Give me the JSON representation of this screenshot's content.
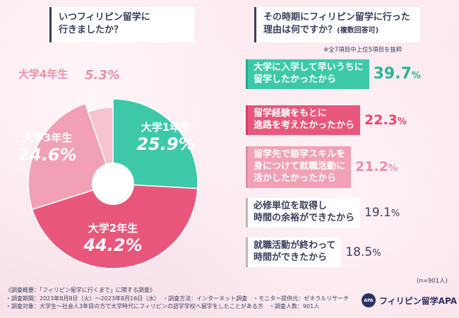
{
  "left_question": {
    "line1": "いつフィリピン留学に",
    "line2": "行きましたか？"
  },
  "right_question": {
    "line1": "その時期にフィリピン留学に行った",
    "line2": "理由は何ですか？",
    "line2_sub": "(複数回答可)"
  },
  "note": "※全7項目中上位5項目を抜粋",
  "chart_data": [
    {
      "type": "pie",
      "title": "いつフィリピン留学に行きましたか？",
      "donut": true,
      "slices": [
        {
          "label": "大学1年生",
          "value": 25.9,
          "display": "25.9%",
          "color": "#3dc9a8"
        },
        {
          "label": "大学2年生",
          "value": 44.2,
          "display": "44.2%",
          "color": "#e8577b"
        },
        {
          "label": "大学3年生",
          "value": 24.6,
          "display": "24.6%",
          "color": "#f2a0b5"
        },
        {
          "label": "大学4年生",
          "value": 5.3,
          "display": "5.3%",
          "color": "#f7c3d0"
        }
      ]
    },
    {
      "type": "bar",
      "title": "その時期にフィリピン留学に行った理由は何ですか？(複数回答可)",
      "categories": [
        "大学に入学して早いうちに留学したかったから",
        "留学経験をもとに進路を考えたかったから",
        "留学先で語学スキルを身につけて就職活動に活かしたかったから",
        "必修単位を取得し時間の余裕ができたから",
        "就職活動が終わって時間ができたから"
      ],
      "values": [
        39.7,
        22.3,
        21.2,
        19.1,
        18.5
      ],
      "unit": "%"
    }
  ],
  "reasons": [
    {
      "lines": [
        "大学に入学して早いうちに",
        "留学したかったから"
      ],
      "pct": "39.7",
      "unit": "%"
    },
    {
      "lines": [
        "留学経験をもとに",
        "進路を考えたかったから"
      ],
      "pct": "22.3",
      "unit": "%"
    },
    {
      "lines": [
        "留学先で語学スキルを",
        "身につけて就職活動に",
        "活かしたかったから"
      ],
      "pct": "21.2",
      "unit": "%"
    },
    {
      "lines": [
        "必修単位を取得し",
        "時間の余裕ができたから"
      ],
      "pct": "19.1",
      "unit": "%"
    },
    {
      "lines": [
        "就職活動が終わって",
        "時間ができたから"
      ],
      "pct": "18.5",
      "unit": "%"
    }
  ],
  "n_label": "(n=901人)",
  "footer": {
    "line1": "《調査概要：「フィリピン留学に行くまで」に関する調査》",
    "line2a": "・調査期間：2023年8月8日（火）～2023年8月16日（水）",
    "line2b": "・調査方法：インターネット調査",
    "line2c": "・モニター提供元：ゼネラルリサーチ",
    "line3a": "・調査対象：大学生～社会人3年目の方で大学時代にフィリピンの語学学校へ留学をしたことがある方",
    "line3b": "・調査人数：901人"
  },
  "logo": {
    "mark": "APA",
    "text": "フィリピン留学APA"
  }
}
